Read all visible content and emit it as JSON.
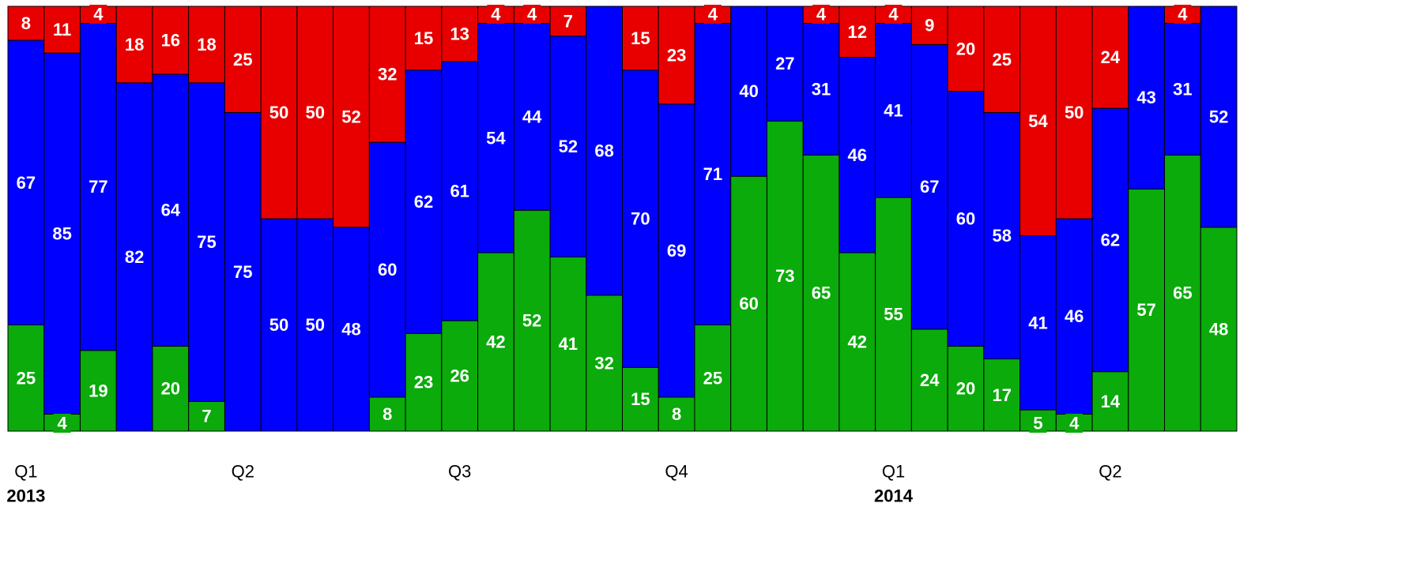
{
  "chart_data": {
    "type": "stacked-bar",
    "categories": [
      "Q1",
      null,
      null,
      null,
      null,
      null,
      "Q2",
      null,
      null,
      null,
      null,
      null,
      "Q3",
      null,
      null,
      null,
      null,
      null,
      "Q4",
      null,
      null,
      null,
      null,
      null,
      "Q1",
      null,
      null,
      null,
      null,
      null,
      "Q2",
      null,
      null,
      null
    ],
    "years": [
      "2013",
      null,
      null,
      null,
      null,
      null,
      null,
      null,
      null,
      null,
      null,
      null,
      null,
      null,
      null,
      null,
      null,
      null,
      null,
      null,
      null,
      null,
      null,
      null,
      "2014",
      null,
      null,
      null,
      null,
      null,
      null,
      null,
      null,
      null
    ],
    "ylim": [
      0,
      100
    ],
    "series": [
      {
        "color": "#0aab0a",
        "values": [
          25,
          4,
          19,
          0,
          20,
          7,
          0,
          0,
          0,
          0,
          8,
          23,
          26,
          42,
          52,
          41,
          32,
          15,
          8,
          25,
          60,
          73,
          65,
          42,
          55,
          24,
          20,
          17,
          5,
          4,
          14,
          57,
          65,
          48
        ]
      },
      {
        "color": "#0000ff",
        "values": [
          67,
          85,
          77,
          82,
          64,
          75,
          75,
          50,
          50,
          48,
          60,
          62,
          61,
          54,
          44,
          52,
          68,
          70,
          69,
          71,
          40,
          27,
          31,
          46,
          41,
          67,
          60,
          58,
          41,
          46,
          62,
          43,
          31,
          52
        ]
      },
      {
        "color": "#e80000",
        "values": [
          8,
          11,
          4,
          18,
          16,
          18,
          25,
          50,
          50,
          52,
          32,
          15,
          13,
          4,
          4,
          7,
          0,
          15,
          23,
          4,
          0,
          0,
          4,
          12,
          4,
          9,
          20,
          25,
          54,
          50,
          24,
          0,
          4,
          0
        ]
      }
    ]
  }
}
